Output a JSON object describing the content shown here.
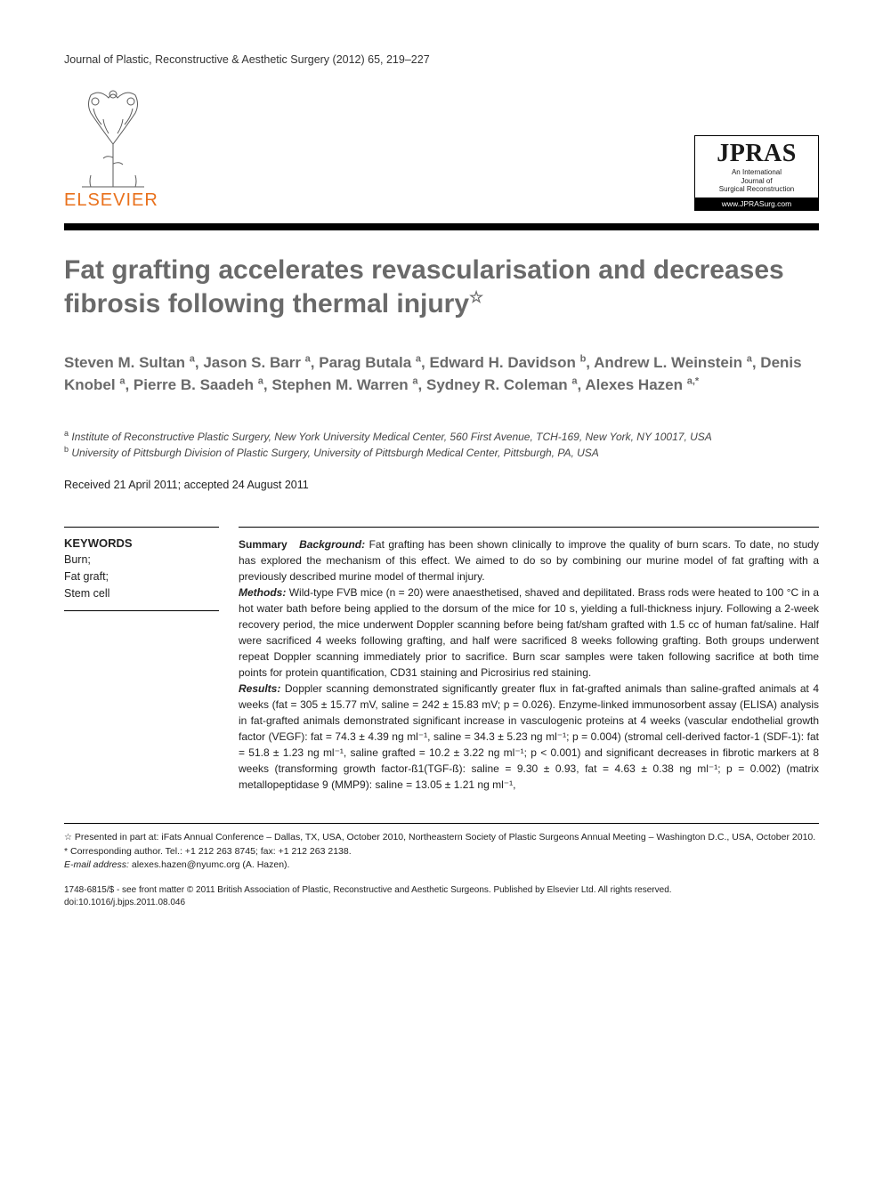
{
  "running_head": "Journal of Plastic, Reconstructive & Aesthetic Surgery (2012) 65, 219–227",
  "publisher": {
    "name": "ELSEVIER",
    "tree_stroke": "#5a5a5a",
    "brand_color": "#e9711c"
  },
  "journal_box": {
    "acronym": "JPRAS",
    "line1": "An International",
    "line2": "Journal of",
    "line3": "Surgical Reconstruction",
    "url": "www.JPRASurg.com"
  },
  "title": "Fat grafting accelerates revascularisation and decreases fibrosis following thermal injury",
  "title_star": "☆",
  "authors": [
    {
      "name": "Steven M. Sultan",
      "aff": "a"
    },
    {
      "name": "Jason S. Barr",
      "aff": "a"
    },
    {
      "name": "Parag Butala",
      "aff": "a"
    },
    {
      "name": "Edward H. Davidson",
      "aff": "b"
    },
    {
      "name": "Andrew L. Weinstein",
      "aff": "a"
    },
    {
      "name": "Denis Knobel",
      "aff": "a"
    },
    {
      "name": "Pierre B. Saadeh",
      "aff": "a"
    },
    {
      "name": "Stephen M. Warren",
      "aff": "a"
    },
    {
      "name": "Sydney R. Coleman",
      "aff": "a"
    },
    {
      "name": "Alexes Hazen",
      "aff": "a,*"
    }
  ],
  "affiliations": {
    "a": "Institute of Reconstructive Plastic Surgery, New York University Medical Center, 560 First Avenue, TCH-169, New York, NY 10017, USA",
    "b": "University of Pittsburgh Division of Plastic Surgery, University of Pittsburgh Medical Center, Pittsburgh, PA, USA"
  },
  "dates": "Received 21 April 2011; accepted 24 August 2011",
  "keywords_head": "KEYWORDS",
  "keywords": [
    "Burn;",
    "Fat graft;",
    "Stem cell"
  ],
  "abstract": {
    "summary_label": "Summary",
    "background_label": "Background:",
    "background": "Fat grafting has been shown clinically to improve the quality of burn scars. To date, no study has explored the mechanism of this effect. We aimed to do so by combining our murine model of fat grafting with a previously described murine model of thermal injury.",
    "methods_label": "Methods:",
    "methods": "Wild-type FVB mice (n = 20) were anaesthetised, shaved and depilitated. Brass rods were heated to 100 °C in a hot water bath before being applied to the dorsum of the mice for 10 s, yielding a full-thickness injury. Following a 2-week recovery period, the mice underwent Doppler scanning before being fat/sham grafted with 1.5 cc of human fat/saline. Half were sacrificed 4 weeks following grafting, and half were sacrificed 8 weeks following grafting. Both groups underwent repeat Doppler scanning immediately prior to sacrifice. Burn scar samples were taken following sacrifice at both time points for protein quantification, CD31 staining and Picrosirius red staining.",
    "results_label": "Results:",
    "results": "Doppler scanning demonstrated significantly greater flux in fat-grafted animals than saline-grafted animals at 4 weeks (fat = 305 ± 15.77 mV, saline = 242 ± 15.83 mV; p = 0.026). Enzyme-linked immunosorbent assay (ELISA) analysis in fat-grafted animals demonstrated significant increase in vasculogenic proteins at 4 weeks (vascular endothelial growth factor (VEGF): fat = 74.3 ± 4.39 ng ml⁻¹, saline = 34.3 ± 5.23 ng ml⁻¹; p = 0.004) (stromal cell-derived factor-1 (SDF-1): fat = 51.8 ± 1.23 ng ml⁻¹, saline grafted = 10.2 ± 3.22 ng ml⁻¹; p < 0.001) and significant decreases in fibrotic markers at 8 weeks (transforming growth factor-ß1(TGF-ß): saline = 9.30 ± 0.93, fat = 4.63 ± 0.38 ng ml⁻¹; p = 0.002) (matrix metallopeptidase 9 (MMP9): saline = 13.05 ± 1.21 ng ml⁻¹,"
  },
  "footnotes": {
    "star": "Presented in part at: iFats Annual Conference – Dallas, TX, USA, October 2010, Northeastern Society of Plastic Surgeons Annual Meeting – Washington D.C., USA, October 2010.",
    "corr_label": "* Corresponding author. Tel.: +1 212 263 8745; fax: +1 212 263 2138.",
    "email_label": "E-mail address:",
    "email": "alexes.hazen@nyumc.org",
    "email_name": "(A. Hazen)."
  },
  "copyright": {
    "issn": "1748-6815/$ - see front matter © 2011 British Association of Plastic, Reconstructive and Aesthetic Surgeons. Published by Elsevier Ltd. All rights reserved.",
    "doi": "doi:10.1016/j.bjps.2011.08.046"
  },
  "colors": {
    "title_gray": "#6a6a6a",
    "rule_black": "#000000",
    "text": "#222222"
  }
}
